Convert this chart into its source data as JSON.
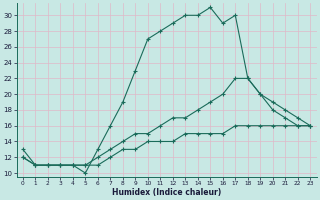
{
  "xlabel": "Humidex (Indice chaleur)",
  "xlim": [
    -0.5,
    23.5
  ],
  "ylim": [
    9.5,
    31.5
  ],
  "xticks": [
    0,
    1,
    2,
    3,
    4,
    5,
    6,
    7,
    8,
    9,
    10,
    11,
    12,
    13,
    14,
    15,
    16,
    17,
    18,
    19,
    20,
    21,
    22,
    23
  ],
  "yticks": [
    10,
    12,
    14,
    16,
    18,
    20,
    22,
    24,
    26,
    28,
    30
  ],
  "bg_color": "#c8e8e4",
  "line_color": "#1a6b5a",
  "grid_color_v": "#e0b8c8",
  "grid_color_h": "#e0b8c8",
  "line1_x": [
    0,
    1,
    2,
    3,
    4,
    5,
    6,
    7,
    8,
    9,
    10,
    11,
    12,
    13,
    14,
    15,
    16,
    17,
    18,
    19,
    20,
    21,
    22,
    23
  ],
  "line1_y": [
    13,
    11,
    11,
    11,
    11,
    10,
    13,
    16,
    19,
    23,
    27,
    28,
    29,
    30,
    30,
    31,
    29,
    30,
    22,
    20,
    18,
    17,
    16,
    16
  ],
  "line2_x": [
    0,
    1,
    2,
    3,
    4,
    5,
    6,
    7,
    8,
    9,
    10,
    11,
    12,
    13,
    14,
    15,
    16,
    17,
    18,
    19,
    20,
    21,
    22,
    23
  ],
  "line2_y": [
    12,
    11,
    11,
    11,
    11,
    11,
    12,
    13,
    14,
    15,
    15,
    16,
    17,
    17,
    18,
    19,
    20,
    22,
    22,
    20,
    19,
    18,
    17,
    16
  ],
  "line3_x": [
    0,
    1,
    2,
    3,
    4,
    5,
    6,
    7,
    8,
    9,
    10,
    11,
    12,
    13,
    14,
    15,
    16,
    17,
    18,
    19,
    20,
    21,
    22,
    23
  ],
  "line3_y": [
    12,
    11,
    11,
    11,
    11,
    11,
    11,
    12,
    13,
    13,
    14,
    14,
    14,
    15,
    15,
    15,
    15,
    16,
    16,
    16,
    16,
    16,
    16,
    16
  ]
}
